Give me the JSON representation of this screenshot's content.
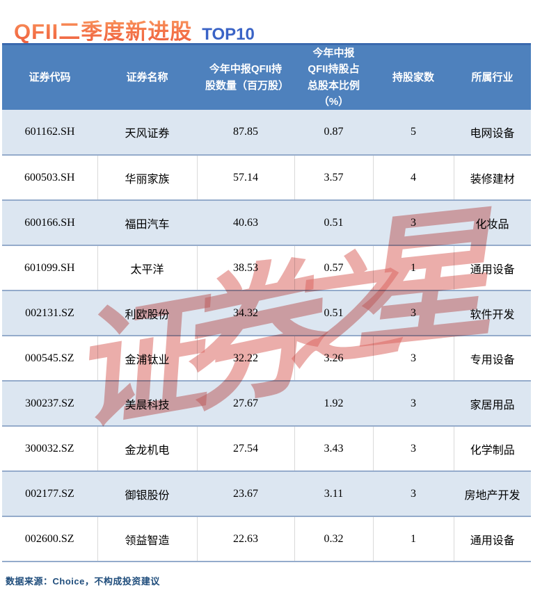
{
  "title": {
    "main": "QFII二季度新进股",
    "badge": "TOP10"
  },
  "chart_data": {
    "type": "table",
    "title": "QFII二季度新进股 TOP10",
    "columns": [
      "证券代码",
      "证券名称",
      "今年中报QFII持股数量（百万股）",
      "今年中报QFII持股占总股本比例（%）",
      "持股家数",
      "所属行业"
    ],
    "rows": [
      [
        "601162.SH",
        "天风证券",
        "87.85",
        "0.87",
        "5",
        "电网设备"
      ],
      [
        "600503.SH",
        "华丽家族",
        "57.14",
        "3.57",
        "4",
        "装修建材"
      ],
      [
        "600166.SH",
        "福田汽车",
        "40.63",
        "0.51",
        "3",
        "化妆品"
      ],
      [
        "601099.SH",
        "太平洋",
        "38.53",
        "0.57",
        "1",
        "通用设备"
      ],
      [
        "002131.SZ",
        "利欧股份",
        "34.32",
        "0.51",
        "3",
        "软件开发"
      ],
      [
        "000545.SZ",
        "金浦钛业",
        "32.22",
        "3.26",
        "3",
        "专用设备"
      ],
      [
        "300237.SZ",
        "美晨科技",
        "27.67",
        "1.92",
        "3",
        "家居用品"
      ],
      [
        "300032.SZ",
        "金龙机电",
        "27.54",
        "3.43",
        "3",
        "化学制品"
      ],
      [
        "002177.SZ",
        "御银股份",
        "23.67",
        "3.11",
        "3",
        "房地产开发"
      ],
      [
        "002600.SZ",
        "领益智造",
        "22.63",
        "0.32",
        "1",
        "通用设备"
      ]
    ]
  },
  "watermark": {
    "text": "证券之星",
    "chars": [
      "证",
      "券",
      "之",
      "星"
    ],
    "color": "#d9625c"
  },
  "footer": {
    "source_note": "数据来源：Choice，不构成投资建议"
  },
  "colors": {
    "header_bg": "#4e81bd",
    "header_top_border": "#3a69ae",
    "stripe_row_bg": "#dce6f1",
    "row_separator": "#94abcb",
    "title_orange": "#f4764a",
    "badge_blue": "#3a63c6",
    "footer_blue": "#1e4c7b"
  }
}
